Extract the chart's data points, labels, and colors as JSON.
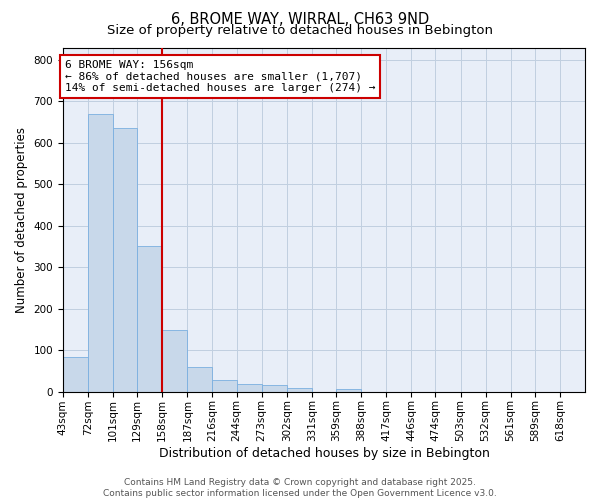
{
  "title": "6, BROME WAY, WIRRAL, CH63 9ND",
  "subtitle": "Size of property relative to detached houses in Bebington",
  "xlabel": "Distribution of detached houses by size in Bebington",
  "ylabel": "Number of detached properties",
  "bins": [
    43,
    72,
    101,
    129,
    158,
    187,
    216,
    244,
    273,
    302,
    331,
    359,
    388,
    417,
    446,
    474,
    503,
    532,
    561,
    589,
    618
  ],
  "heights": [
    83,
    670,
    635,
    352,
    148,
    60,
    28,
    18,
    15,
    8,
    0,
    7,
    0,
    0,
    0,
    0,
    0,
    0,
    0,
    0,
    0
  ],
  "bar_color": "#c8d8ea",
  "bar_edge_color": "#7aafe0",
  "vline_x": 158,
  "vline_color": "#cc0000",
  "annotation_text": "6 BROME WAY: 156sqm\n← 86% of detached houses are smaller (1,707)\n14% of semi-detached houses are larger (274) →",
  "annotation_box_color": "white",
  "annotation_box_edge": "#cc0000",
  "ylim": [
    0,
    830
  ],
  "yticks": [
    0,
    100,
    200,
    300,
    400,
    500,
    600,
    700,
    800
  ],
  "grid_color": "#c0cfe0",
  "bg_color": "#e8eef8",
  "footer_line1": "Contains HM Land Registry data © Crown copyright and database right 2025.",
  "footer_line2": "Contains public sector information licensed under the Open Government Licence v3.0.",
  "title_fontsize": 10.5,
  "subtitle_fontsize": 9.5,
  "tick_fontsize": 7.5,
  "annotation_fontsize": 8,
  "footer_fontsize": 6.5,
  "ylabel_fontsize": 8.5,
  "xlabel_fontsize": 9
}
